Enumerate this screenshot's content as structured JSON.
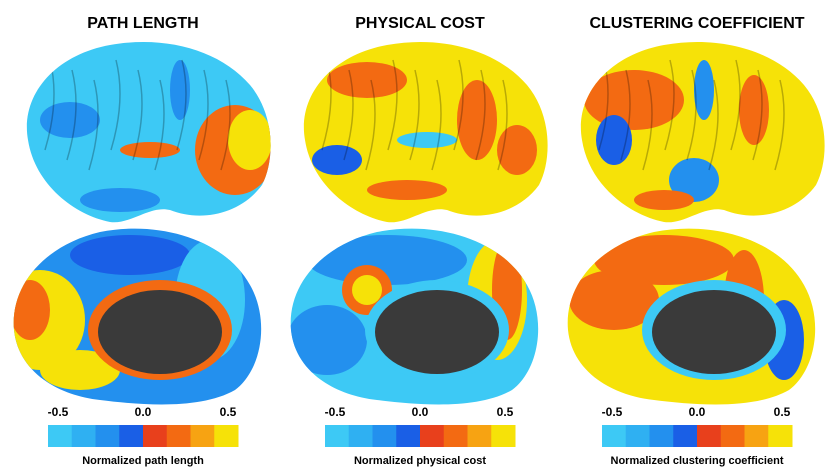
{
  "colorbar_colors": [
    "#3dc9f5",
    "#2fb0f2",
    "#2390ee",
    "#1a5fe6",
    "#e8401c",
    "#f36a12",
    "#f7a312",
    "#f6e208"
  ],
  "panels": [
    {
      "title": "PATH LENGTH",
      "colorbar": {
        "ticks": [
          "-0.5",
          "0.0",
          "0.5"
        ],
        "label": "Normalized path length"
      }
    },
    {
      "title": "PHYSICAL COST",
      "colorbar": {
        "ticks": [
          "-0.5",
          "0.0",
          "0.5"
        ],
        "label": "Normalized physical cost"
      }
    },
    {
      "title": "CLUSTERING COEFFICIENT",
      "colorbar": {
        "ticks": [
          "-0.5",
          "0.0",
          "0.5"
        ],
        "label": "Normalized clustering coefficient"
      }
    }
  ]
}
